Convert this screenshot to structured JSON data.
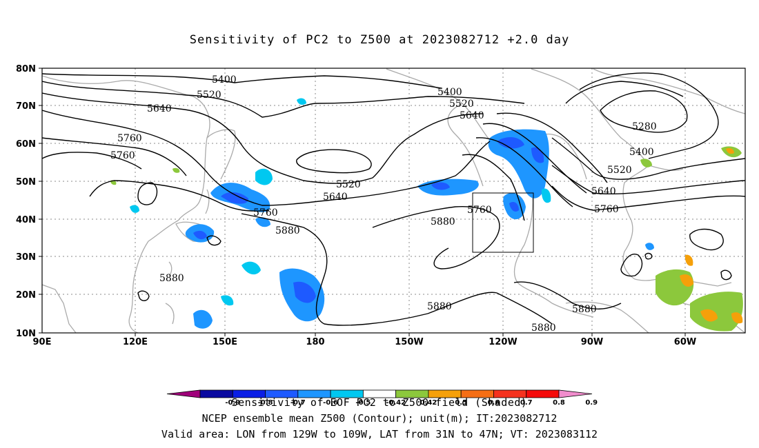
{
  "title": "Sensitivity of PC2 to Z500 at 2023082712 +2.0 day",
  "lat_labels": [
    "80N",
    "70N",
    "60N",
    "50N",
    "40N",
    "30N",
    "20N",
    "10N"
  ],
  "lon_labels": [
    "90E",
    "120E",
    "150E",
    "180",
    "150W",
    "120W",
    "90W",
    "60W"
  ],
  "contour_labels": [
    "5400",
    "5520",
    "5640",
    "5760",
    "5760",
    "5760",
    "5880",
    "5880",
    "5400",
    "5520",
    "5640",
    "5520",
    "5640",
    "5760",
    "5880",
    "5280",
    "5400",
    "5520",
    "5640",
    "5760",
    "5880",
    "5880",
    "5880"
  ],
  "colorbar": {
    "labels": [
      "-0.9",
      "-0.8",
      "-0.7",
      "-0.6",
      "-0.5",
      "-0.42",
      "0.42",
      "0.5",
      "0.6",
      "0.7",
      "0.8",
      "0.9"
    ],
    "colors": [
      "#a0007a",
      "#0a0aa0",
      "#0a1ee6",
      "#1e5aff",
      "#1e96ff",
      "#00c8f0",
      "#ffffff",
      "#8cc83c",
      "#f5a00a",
      "#f56e14",
      "#f5321e",
      "#f50a0a",
      "#f08ccc"
    ]
  },
  "captions": {
    "line1": "Sensitivity of EOF PC2 to Z500 field (Shaded)",
    "line2": "NCEP ensemble mean Z500 (Contour); unit(m); IT:2023082712",
    "line3": "Valid area: LON from 129W to 109W, LAT from 31N to 47N; VT: 2023083112"
  },
  "colors": {
    "contour": "#000000",
    "coast": "#aaaaaa",
    "grid": "#888888",
    "neg_shade": "#1e96ff",
    "neg_core": "#1e5aff",
    "neg_light": "#00c8f0",
    "pos_shade": "#8cc83c",
    "pos_core": "#f5a00a"
  }
}
